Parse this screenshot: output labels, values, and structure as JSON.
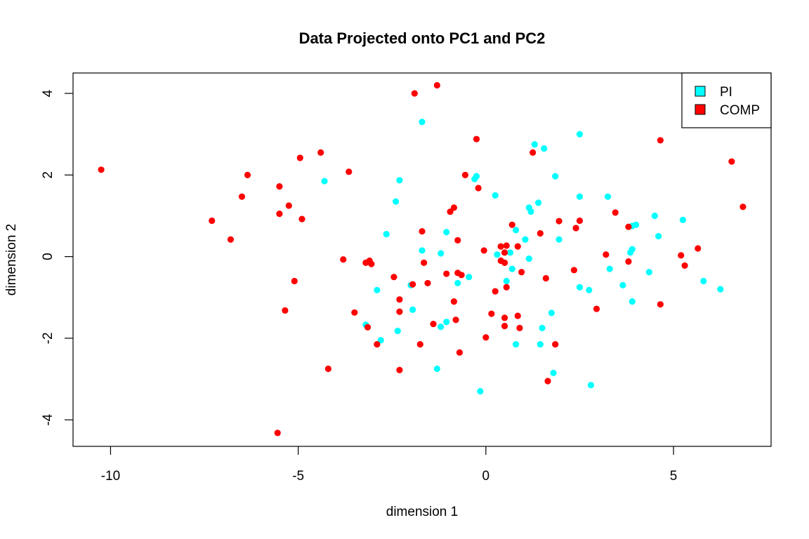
{
  "chart_data": {
    "type": "scatter",
    "title": "Data Projected onto PC1 and PC2",
    "xlabel": "dimension 1",
    "ylabel": "dimension 2",
    "xlim": [
      -11,
      7.6
    ],
    "ylim": [
      -4.65,
      4.5
    ],
    "xticks": [
      -10,
      -5,
      0,
      5
    ],
    "yticks": [
      -4,
      -2,
      0,
      2,
      4
    ],
    "legend_position": "top-right",
    "series": [
      {
        "name": "PI",
        "color": "#00FFFF",
        "points": [
          [
            -1.7,
            3.3
          ],
          [
            -4.3,
            1.85
          ],
          [
            -2.3,
            1.87
          ],
          [
            -2.4,
            1.35
          ],
          [
            -2.65,
            0.55
          ],
          [
            -1.7,
            0.15
          ],
          [
            -1.2,
            0.08
          ],
          [
            -1.05,
            0.6
          ],
          [
            -0.3,
            1.9
          ],
          [
            -0.25,
            1.97
          ],
          [
            0.25,
            1.5
          ],
          [
            1.3,
            2.75
          ],
          [
            1.55,
            2.65
          ],
          [
            2.5,
            3.0
          ],
          [
            1.85,
            1.97
          ],
          [
            1.15,
            1.2
          ],
          [
            1.2,
            1.1
          ],
          [
            1.4,
            1.32
          ],
          [
            2.5,
            1.47
          ],
          [
            3.25,
            1.47
          ],
          [
            0.8,
            0.65
          ],
          [
            1.05,
            0.42
          ],
          [
            1.95,
            0.42
          ],
          [
            0.3,
            0.05
          ],
          [
            0.65,
            0.1
          ],
          [
            1.15,
            -0.05
          ],
          [
            0.7,
            -0.3
          ],
          [
            0.55,
            -0.6
          ],
          [
            -0.45,
            -0.5
          ],
          [
            -0.75,
            -0.65
          ],
          [
            -2.0,
            -0.7
          ],
          [
            -2.9,
            -0.82
          ],
          [
            -1.95,
            -1.3
          ],
          [
            -3.2,
            -1.67
          ],
          [
            -2.35,
            -1.82
          ],
          [
            -2.8,
            -2.05
          ],
          [
            -1.2,
            -1.72
          ],
          [
            -1.05,
            -1.6
          ],
          [
            -1.3,
            -2.75
          ],
          [
            -0.15,
            -3.3
          ],
          [
            0.8,
            -2.15
          ],
          [
            1.45,
            -2.15
          ],
          [
            1.5,
            -1.75
          ],
          [
            1.75,
            -1.38
          ],
          [
            1.8,
            -2.85
          ],
          [
            2.8,
            -3.15
          ],
          [
            2.5,
            -0.75
          ],
          [
            2.75,
            -0.82
          ],
          [
            3.3,
            -0.3
          ],
          [
            3.65,
            -0.7
          ],
          [
            3.9,
            -1.1
          ],
          [
            3.85,
            0.1
          ],
          [
            3.9,
            0.18
          ],
          [
            3.9,
            0.75
          ],
          [
            4.0,
            0.78
          ],
          [
            4.35,
            -0.38
          ],
          [
            4.5,
            1.0
          ],
          [
            4.6,
            0.5
          ],
          [
            5.25,
            0.9
          ],
          [
            5.8,
            -0.6
          ],
          [
            6.25,
            -0.8
          ]
        ]
      },
      {
        "name": "COMP",
        "color": "#FF0000",
        "points": [
          [
            -10.25,
            2.13
          ],
          [
            -7.3,
            0.88
          ],
          [
            -6.8,
            0.42
          ],
          [
            -6.5,
            1.47
          ],
          [
            -6.35,
            2.0
          ],
          [
            -5.5,
            1.72
          ],
          [
            -5.5,
            1.05
          ],
          [
            -5.25,
            1.25
          ],
          [
            -5.35,
            -1.32
          ],
          [
            -5.1,
            -0.6
          ],
          [
            -4.95,
            2.42
          ],
          [
            -4.9,
            0.92
          ],
          [
            -4.4,
            2.55
          ],
          [
            -4.2,
            -2.75
          ],
          [
            -3.65,
            2.08
          ],
          [
            -3.8,
            -0.07
          ],
          [
            -3.5,
            -1.37
          ],
          [
            -3.2,
            -0.15
          ],
          [
            -3.1,
            -0.1
          ],
          [
            -3.05,
            -0.18
          ],
          [
            -3.15,
            -1.73
          ],
          [
            -2.9,
            -2.15
          ],
          [
            -2.45,
            -0.5
          ],
          [
            -2.3,
            -1.05
          ],
          [
            -2.3,
            -1.35
          ],
          [
            -2.3,
            -2.78
          ],
          [
            -1.9,
            4.0
          ],
          [
            -1.3,
            4.2
          ],
          [
            -1.7,
            0.62
          ],
          [
            -1.65,
            -0.15
          ],
          [
            -1.55,
            -0.65
          ],
          [
            -1.4,
            -1.65
          ],
          [
            -1.95,
            -0.68
          ],
          [
            -1.05,
            -0.42
          ],
          [
            -0.95,
            1.1
          ],
          [
            -0.85,
            1.2
          ],
          [
            -0.85,
            -1.1
          ],
          [
            -0.75,
            -0.4
          ],
          [
            -0.75,
            0.4
          ],
          [
            -0.65,
            -0.45
          ],
          [
            -0.8,
            -1.55
          ],
          [
            -0.7,
            -2.35
          ],
          [
            -0.55,
            2.0
          ],
          [
            -0.25,
            2.88
          ],
          [
            -0.2,
            1.68
          ],
          [
            -0.05,
            0.15
          ],
          [
            0.0,
            -1.98
          ],
          [
            0.15,
            -1.4
          ],
          [
            0.25,
            -0.85
          ],
          [
            0.4,
            0.25
          ],
          [
            0.4,
            -0.1
          ],
          [
            0.5,
            0.1
          ],
          [
            0.55,
            0.27
          ],
          [
            0.5,
            -0.15
          ],
          [
            0.55,
            -0.75
          ],
          [
            0.5,
            -1.5
          ],
          [
            0.5,
            -1.7
          ],
          [
            0.7,
            0.78
          ],
          [
            0.85,
            0.25
          ],
          [
            0.85,
            -1.45
          ],
          [
            0.9,
            -1.75
          ],
          [
            0.95,
            -0.38
          ],
          [
            1.25,
            2.55
          ],
          [
            1.45,
            0.57
          ],
          [
            1.6,
            -0.53
          ],
          [
            1.65,
            -3.05
          ],
          [
            1.85,
            -2.15
          ],
          [
            1.95,
            0.87
          ],
          [
            2.35,
            -0.33
          ],
          [
            2.4,
            0.7
          ],
          [
            2.5,
            0.88
          ],
          [
            2.95,
            -1.28
          ],
          [
            3.2,
            0.05
          ],
          [
            3.45,
            1.08
          ],
          [
            3.8,
            0.73
          ],
          [
            3.8,
            -0.12
          ],
          [
            4.65,
            2.85
          ],
          [
            4.65,
            -1.17
          ],
          [
            5.2,
            0.03
          ],
          [
            5.3,
            -0.22
          ],
          [
            5.65,
            0.2
          ],
          [
            6.55,
            2.33
          ],
          [
            6.85,
            1.22
          ],
          [
            -5.55,
            -4.32
          ],
          [
            -1.75,
            -2.15
          ]
        ]
      }
    ]
  }
}
